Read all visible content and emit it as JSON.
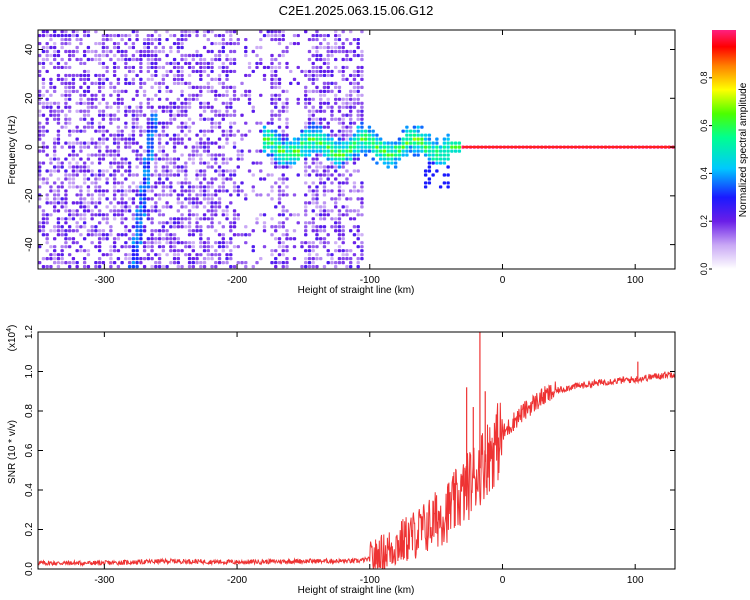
{
  "title": "C2E1.2025.063.15.06.G12",
  "chart_data": [
    {
      "type": "heatmap",
      "xlabel": "Height of straight line (km)",
      "ylabel": "Frequency (Hz)",
      "xlim": [
        -350,
        130
      ],
      "ylim": [
        -50,
        48
      ],
      "xticks": [
        -300,
        -200,
        -100,
        0,
        100
      ],
      "yticks": [
        -40,
        -20,
        0,
        20,
        40
      ],
      "colorbar": {
        "label": "Normalized spectral amplitude",
        "range": [
          0,
          1
        ],
        "ticks": [
          0.0,
          0.2,
          0.4,
          0.6,
          0.8
        ],
        "tick_labels": [
          "0.0",
          "0.2",
          "0.4",
          "0.6",
          "0.8"
        ]
      },
      "features": {
        "noise_region_x": [
          -350,
          -105
        ],
        "slanted_trace": {
          "x_start": -278,
          "y_start": -50,
          "x_end": -262,
          "y_end": 14
        },
        "signal_band": {
          "x_start": -180,
          "x_end": 130,
          "center_freq": 0
        }
      }
    },
    {
      "type": "line",
      "xlabel": "Height of straight line (km)",
      "ylabel": "SNR (10 * v/v)",
      "scale_label": "(x10",
      "scale_exponent": "4",
      "scale_close": ")",
      "xlim": [
        -350,
        130
      ],
      "ylim": [
        0,
        1.2
      ],
      "xticks": [
        -300,
        -200,
        -100,
        0,
        100
      ],
      "yticks": [
        0.0,
        0.2,
        0.4,
        0.6,
        0.8,
        1.0,
        1.2
      ],
      "ytick_labels": [
        "0.0",
        "0.2",
        "0.4",
        "0.6",
        "0.8",
        "1.0",
        "1.2"
      ],
      "series": [
        {
          "color": "#ee3333",
          "x": [
            -350,
            -300,
            -250,
            -200,
            -150,
            -110,
            -100,
            -90,
            -80,
            -70,
            -60,
            -50,
            -40,
            -30,
            -20,
            -10,
            0,
            10,
            20,
            30,
            40,
            50,
            60,
            70,
            80,
            90,
            100,
            110,
            120,
            130
          ],
          "y": [
            0.03,
            0.03,
            0.04,
            0.035,
            0.04,
            0.04,
            0.05,
            0.08,
            0.12,
            0.16,
            0.2,
            0.25,
            0.3,
            0.38,
            0.48,
            0.58,
            0.68,
            0.76,
            0.82,
            0.87,
            0.9,
            0.92,
            0.93,
            0.94,
            0.95,
            0.955,
            0.96,
            0.97,
            0.98,
            0.99
          ]
        }
      ],
      "spikes": [
        {
          "x": -27,
          "y": 0.92
        },
        {
          "x": -22,
          "y": 0.82
        },
        {
          "x": -17,
          "y": 1.2
        },
        {
          "x": -13,
          "y": 0.9
        },
        {
          "x": 102,
          "y": 1.05
        }
      ]
    }
  ]
}
